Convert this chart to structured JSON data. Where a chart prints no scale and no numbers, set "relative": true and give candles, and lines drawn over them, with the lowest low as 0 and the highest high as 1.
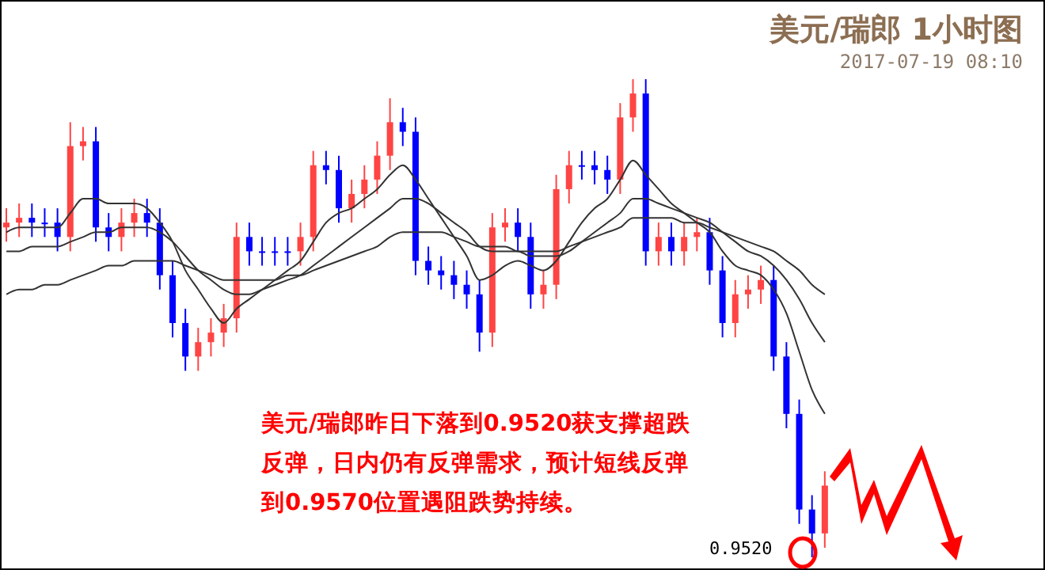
{
  "chart_data": {
    "type": "candlestick",
    "relative": true,
    "title": "美元/瑞郎 1小时图",
    "subtitle": "2017-07-19 08:10",
    "annotations": [
      "美元/瑞郎昨日下落到0.9520获支撑超跌反弹，日内仍有反弹需求，预计短线反弹到0.9570位置遇阻跌势持续。",
      "0.9520"
    ],
    "grid": false,
    "categories": [
      null,
      null,
      null,
      null,
      null,
      null,
      null,
      null,
      null,
      null,
      null,
      null,
      null,
      null,
      null,
      null,
      null,
      null,
      null,
      null,
      null,
      null,
      null,
      null,
      null,
      null,
      null,
      null,
      null,
      null,
      null,
      null,
      null,
      null,
      null,
      null,
      null,
      null,
      null,
      null,
      null,
      null,
      null,
      null,
      null,
      null,
      null,
      null,
      null,
      null,
      null,
      null,
      null,
      null,
      null,
      null,
      null,
      null,
      null,
      null,
      null,
      null,
      null,
      null,
      null
    ],
    "ohlc": [
      [
        0.69,
        0.73,
        0.66,
        0.7
      ],
      [
        0.7,
        0.74,
        0.67,
        0.71
      ],
      [
        0.71,
        0.74,
        0.67,
        0.7
      ],
      [
        0.7,
        0.73,
        0.67,
        0.7
      ],
      [
        0.7,
        0.73,
        0.64,
        0.67
      ],
      [
        0.67,
        0.91,
        0.64,
        0.86
      ],
      [
        0.86,
        0.9,
        0.83,
        0.87
      ],
      [
        0.87,
        0.9,
        0.66,
        0.69
      ],
      [
        0.69,
        0.72,
        0.64,
        0.67
      ],
      [
        0.67,
        0.73,
        0.64,
        0.7
      ],
      [
        0.7,
        0.75,
        0.67,
        0.72
      ],
      [
        0.72,
        0.75,
        0.67,
        0.7
      ],
      [
        0.7,
        0.73,
        0.56,
        0.59
      ],
      [
        0.59,
        0.62,
        0.46,
        0.49
      ],
      [
        0.49,
        0.52,
        0.39,
        0.42
      ],
      [
        0.42,
        0.48,
        0.39,
        0.45
      ],
      [
        0.45,
        0.5,
        0.42,
        0.47
      ],
      [
        0.47,
        0.53,
        0.44,
        0.5
      ],
      [
        0.5,
        0.7,
        0.47,
        0.67
      ],
      [
        0.67,
        0.7,
        0.61,
        0.64
      ],
      [
        0.64,
        0.67,
        0.61,
        0.64
      ],
      [
        0.64,
        0.67,
        0.61,
        0.64
      ],
      [
        0.64,
        0.67,
        0.61,
        0.64
      ],
      [
        0.64,
        0.7,
        0.61,
        0.67
      ],
      [
        0.67,
        0.85,
        0.64,
        0.82
      ],
      [
        0.82,
        0.85,
        0.78,
        0.81
      ],
      [
        0.81,
        0.84,
        0.7,
        0.73
      ],
      [
        0.73,
        0.79,
        0.7,
        0.76
      ],
      [
        0.76,
        0.82,
        0.73,
        0.79
      ],
      [
        0.79,
        0.87,
        0.76,
        0.84
      ],
      [
        0.84,
        0.96,
        0.81,
        0.91
      ],
      [
        0.91,
        0.94,
        0.86,
        0.89
      ],
      [
        0.89,
        0.92,
        0.59,
        0.62
      ],
      [
        0.62,
        0.65,
        0.57,
        0.6
      ],
      [
        0.6,
        0.63,
        0.56,
        0.59
      ],
      [
        0.59,
        0.62,
        0.54,
        0.57
      ],
      [
        0.57,
        0.6,
        0.52,
        0.55
      ],
      [
        0.55,
        0.58,
        0.43,
        0.47
      ],
      [
        0.47,
        0.72,
        0.44,
        0.69
      ],
      [
        0.69,
        0.73,
        0.66,
        0.7
      ],
      [
        0.7,
        0.73,
        0.64,
        0.67
      ],
      [
        0.67,
        0.7,
        0.52,
        0.55
      ],
      [
        0.55,
        0.6,
        0.52,
        0.57
      ],
      [
        0.57,
        0.8,
        0.54,
        0.77
      ],
      [
        0.77,
        0.85,
        0.74,
        0.82
      ],
      [
        0.82,
        0.85,
        0.79,
        0.82
      ],
      [
        0.82,
        0.85,
        0.78,
        0.81
      ],
      [
        0.81,
        0.84,
        0.76,
        0.79
      ],
      [
        0.79,
        0.95,
        0.76,
        0.92
      ],
      [
        0.92,
        1.0,
        0.89,
        0.97
      ],
      [
        0.97,
        1.0,
        0.61,
        0.64
      ],
      [
        0.64,
        0.7,
        0.61,
        0.67
      ],
      [
        0.67,
        0.7,
        0.61,
        0.64
      ],
      [
        0.64,
        0.7,
        0.61,
        0.67
      ],
      [
        0.67,
        0.71,
        0.64,
        0.68
      ],
      [
        0.68,
        0.71,
        0.57,
        0.6
      ],
      [
        0.6,
        0.63,
        0.46,
        0.49
      ],
      [
        0.49,
        0.58,
        0.46,
        0.55
      ],
      [
        0.55,
        0.59,
        0.52,
        0.56
      ],
      [
        0.56,
        0.61,
        0.53,
        0.58
      ],
      [
        0.58,
        0.61,
        0.39,
        0.42
      ],
      [
        0.42,
        0.45,
        0.27,
        0.3
      ],
      [
        0.3,
        0.33,
        0.07,
        0.1
      ],
      [
        0.1,
        0.13,
        0.0,
        0.05
      ],
      [
        0.05,
        0.18,
        0.02,
        0.15
      ]
    ],
    "colors": [
      "#ff4444",
      "#ff4444",
      "#0000ff",
      "#0000ff",
      "#0000ff",
      "#ff4444",
      "#ff4444",
      "#0000ff",
      "#0000ff",
      "#ff4444",
      "#ff4444",
      "#0000ff",
      "#0000ff",
      "#0000ff",
      "#0000ff",
      "#ff4444",
      "#ff4444",
      "#ff4444",
      "#ff4444",
      "#0000ff",
      "#0000ff",
      "#0000ff",
      "#0000ff",
      "#ff4444",
      "#ff4444",
      "#0000ff",
      "#0000ff",
      "#ff4444",
      "#ff4444",
      "#ff4444",
      "#ff4444",
      "#0000ff",
      "#0000ff",
      "#0000ff",
      "#0000ff",
      "#0000ff",
      "#0000ff",
      "#0000ff",
      "#ff4444",
      "#ff4444",
      "#0000ff",
      "#0000ff",
      "#ff4444",
      "#ff4444",
      "#ff4444",
      "#0000ff",
      "#0000ff",
      "#0000ff",
      "#ff4444",
      "#ff4444",
      "#0000ff",
      "#ff4444",
      "#0000ff",
      "#ff4444",
      "#ff4444",
      "#0000ff",
      "#0000ff",
      "#ff4444",
      "#ff4444",
      "#ff4444",
      "#0000ff",
      "#0000ff",
      "#0000ff",
      "#0000ff",
      "#ff4444"
    ],
    "series": [
      {
        "type": "line",
        "color": "#333333",
        "values": [
          0.68,
          0.69,
          0.69,
          0.69,
          0.69,
          0.72,
          0.75,
          0.75,
          0.74,
          0.74,
          0.74,
          0.73,
          0.7,
          0.66,
          0.6,
          0.56,
          0.52,
          0.49,
          0.52,
          0.54,
          0.56,
          0.58,
          0.6,
          0.62,
          0.66,
          0.7,
          0.72,
          0.73,
          0.75,
          0.77,
          0.8,
          0.82,
          0.79,
          0.75,
          0.71,
          0.67,
          0.63,
          0.58,
          0.59,
          0.61,
          0.62,
          0.61,
          0.6,
          0.62,
          0.66,
          0.7,
          0.73,
          0.75,
          0.79,
          0.83,
          0.8,
          0.77,
          0.74,
          0.72,
          0.7,
          0.68,
          0.64,
          0.61,
          0.6,
          0.59,
          0.56,
          0.51,
          0.43,
          0.35,
          0.3
        ]
      },
      {
        "type": "line",
        "color": "#333333",
        "values": [
          0.64,
          0.64,
          0.65,
          0.65,
          0.65,
          0.66,
          0.67,
          0.68,
          0.68,
          0.69,
          0.69,
          0.69,
          0.68,
          0.66,
          0.63,
          0.6,
          0.58,
          0.56,
          0.55,
          0.55,
          0.56,
          0.57,
          0.58,
          0.59,
          0.61,
          0.63,
          0.65,
          0.67,
          0.69,
          0.71,
          0.73,
          0.75,
          0.75,
          0.74,
          0.72,
          0.7,
          0.68,
          0.65,
          0.64,
          0.64,
          0.64,
          0.63,
          0.63,
          0.63,
          0.64,
          0.66,
          0.68,
          0.7,
          0.72,
          0.75,
          0.75,
          0.74,
          0.73,
          0.72,
          0.71,
          0.7,
          0.68,
          0.66,
          0.64,
          0.63,
          0.61,
          0.58,
          0.54,
          0.49,
          0.45
        ]
      },
      {
        "type": "line",
        "color": "#333333",
        "values": [
          0.55,
          0.56,
          0.56,
          0.57,
          0.57,
          0.58,
          0.59,
          0.6,
          0.61,
          0.61,
          0.62,
          0.62,
          0.62,
          0.62,
          0.61,
          0.6,
          0.59,
          0.58,
          0.58,
          0.58,
          0.58,
          0.58,
          0.59,
          0.59,
          0.6,
          0.61,
          0.62,
          0.63,
          0.64,
          0.65,
          0.67,
          0.68,
          0.68,
          0.68,
          0.68,
          0.67,
          0.66,
          0.65,
          0.65,
          0.65,
          0.64,
          0.64,
          0.64,
          0.64,
          0.65,
          0.66,
          0.67,
          0.68,
          0.69,
          0.71,
          0.71,
          0.71,
          0.71,
          0.7,
          0.7,
          0.69,
          0.68,
          0.67,
          0.66,
          0.65,
          0.64,
          0.62,
          0.6,
          0.57,
          0.55
        ]
      }
    ]
  }
}
